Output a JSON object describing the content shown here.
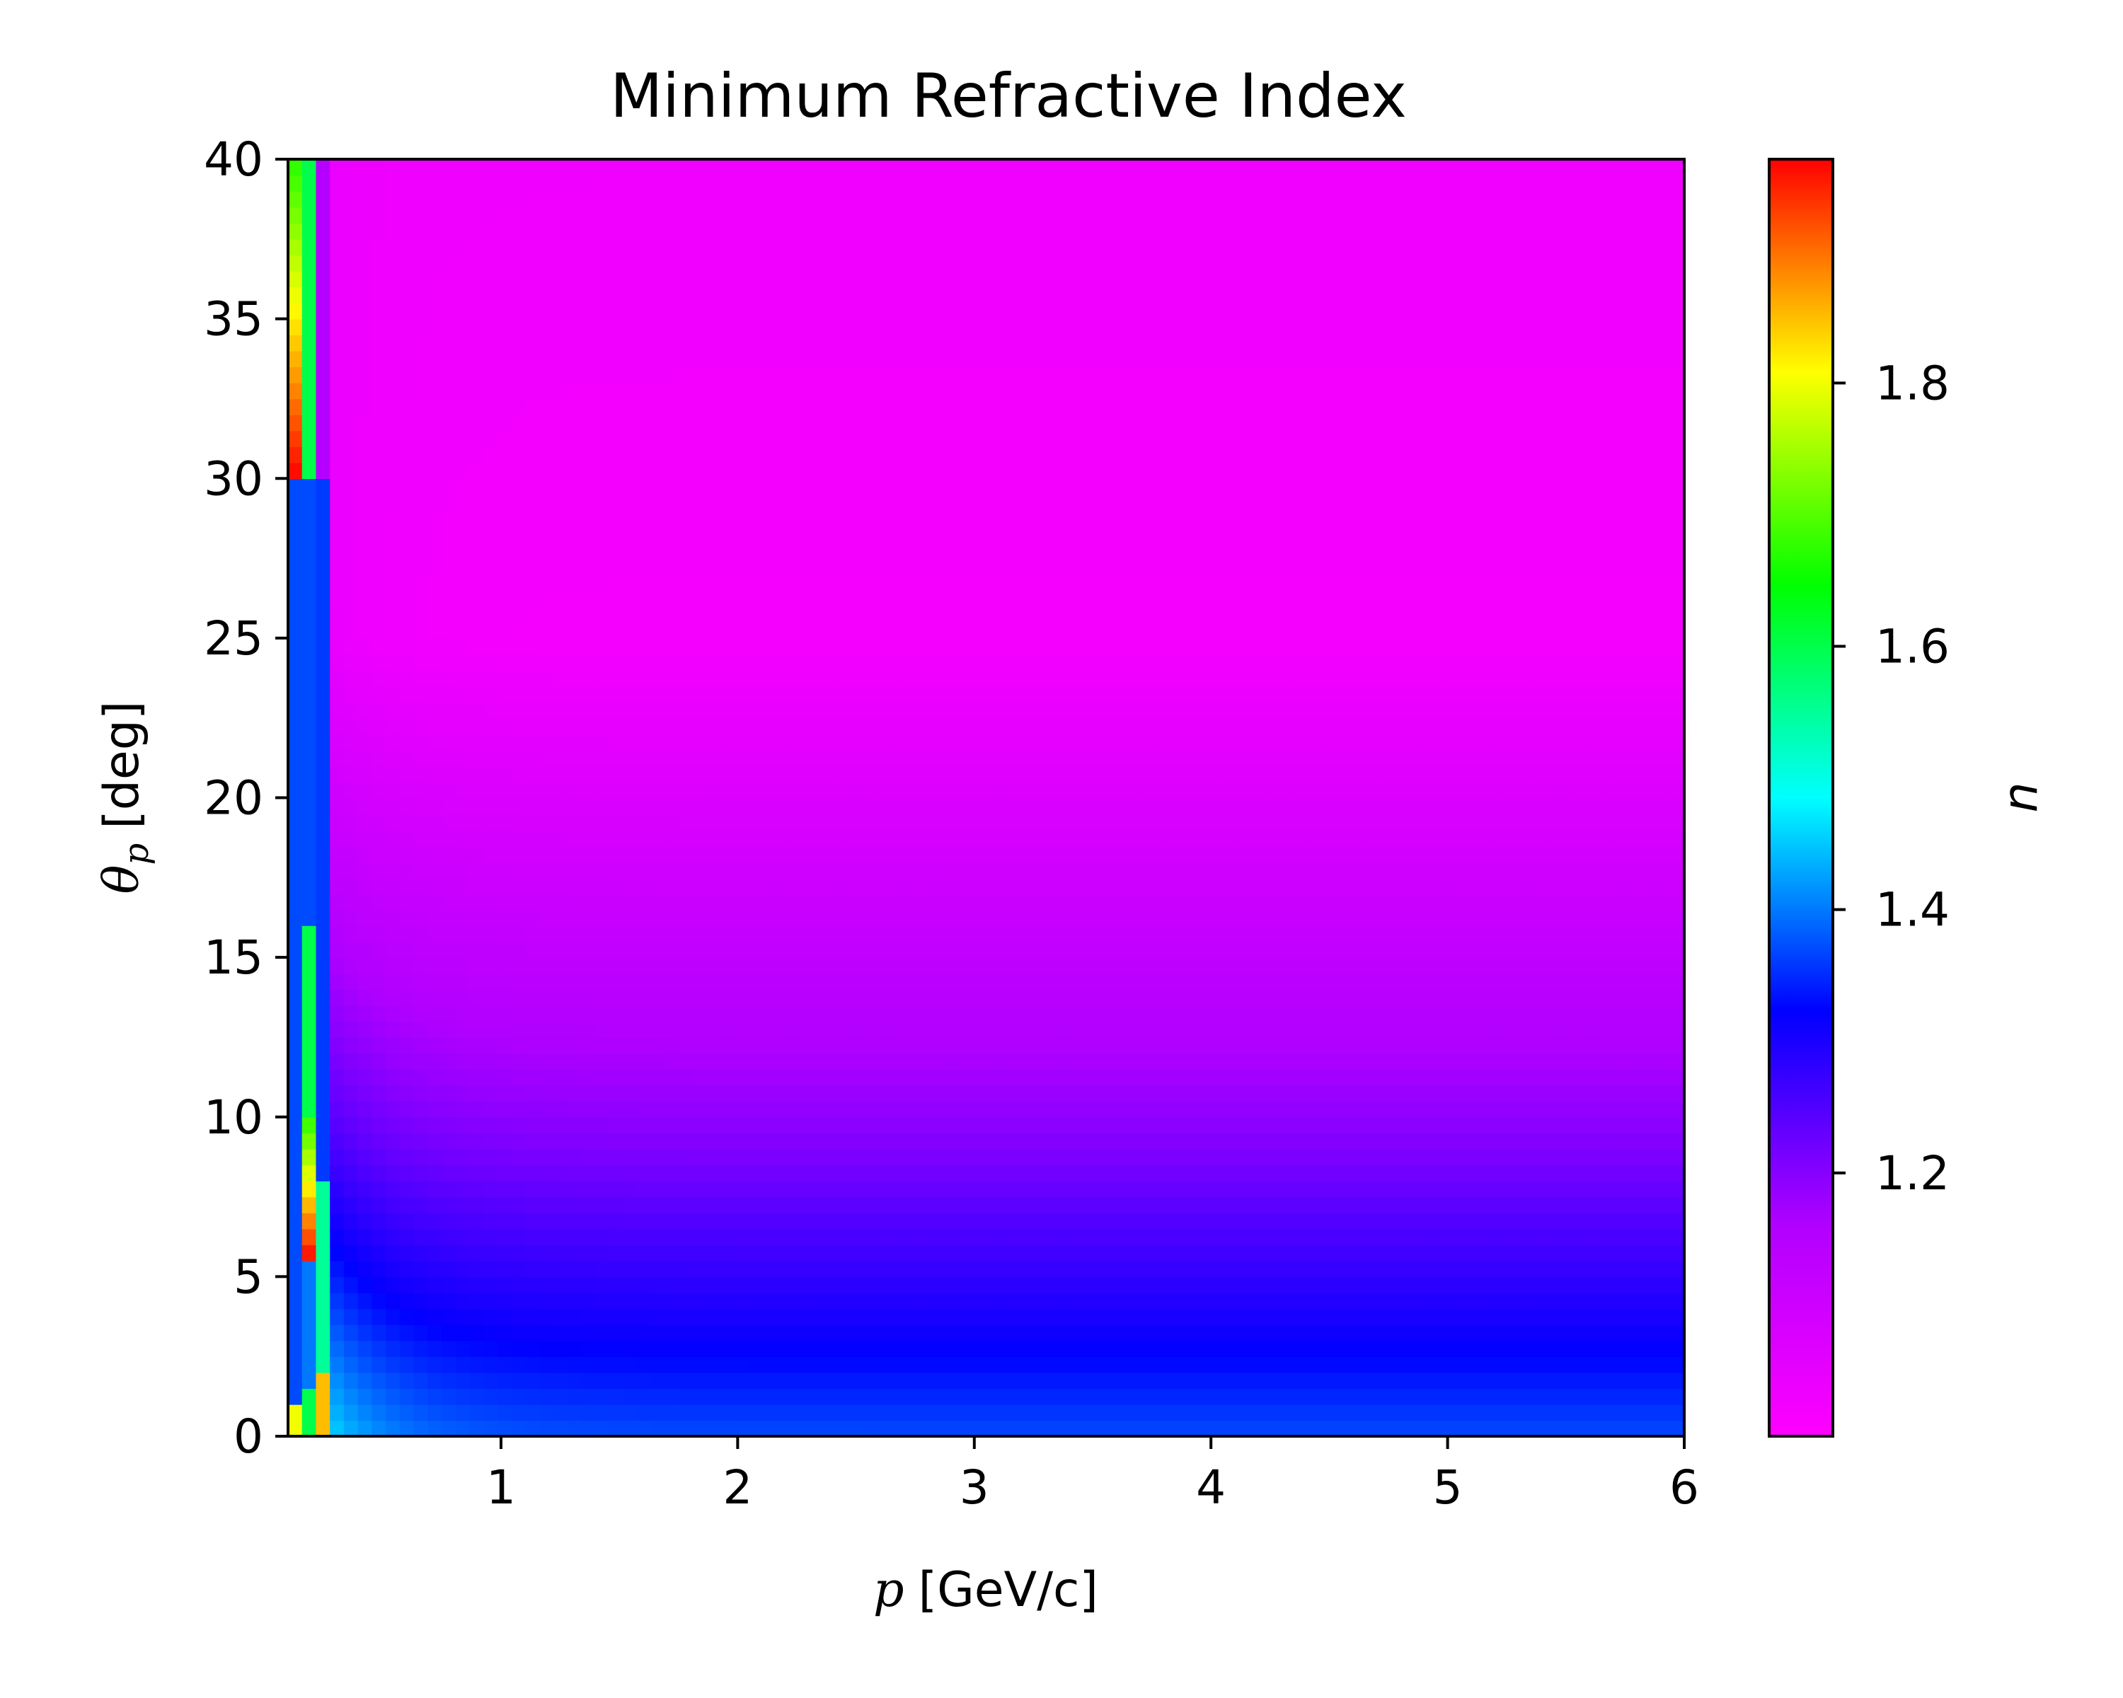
{
  "chart_data": {
    "type": "heatmap",
    "title": "Minimum Refractive Index",
    "xlabel": {
      "symbol": "p",
      "unit": "[GeV/c]"
    },
    "ylabel": {
      "symbol": "θ",
      "subscript": "p",
      "unit": "[deg]"
    },
    "colorbar_label": "n",
    "xlim": [
      0.1,
      6
    ],
    "ylim": [
      0,
      40
    ],
    "x_ticks": [
      1,
      2,
      3,
      4,
      5,
      6
    ],
    "y_ticks": [
      0,
      5,
      10,
      15,
      20,
      25,
      30,
      35,
      40
    ],
    "colorbar": {
      "range": [
        1.0,
        1.97
      ],
      "ticks": [
        1.2,
        1.4,
        1.6,
        1.8
      ],
      "colormap": [
        "#ff00ff",
        "#b000ff",
        "#0000ff",
        "#00ffff",
        "#00ff00",
        "#ffff00",
        "#ff0000"
      ]
    },
    "grid": false,
    "data_description_values": {
      "low_p_column_values": {
        "x": 0.15,
        "n_range": [
          1.35,
          1.97
        ]
      },
      "min_n_at_large_theta": 1.02,
      "band_n_at_theta_8": 1.22,
      "n_at_theta_0": 1.37
    }
  }
}
